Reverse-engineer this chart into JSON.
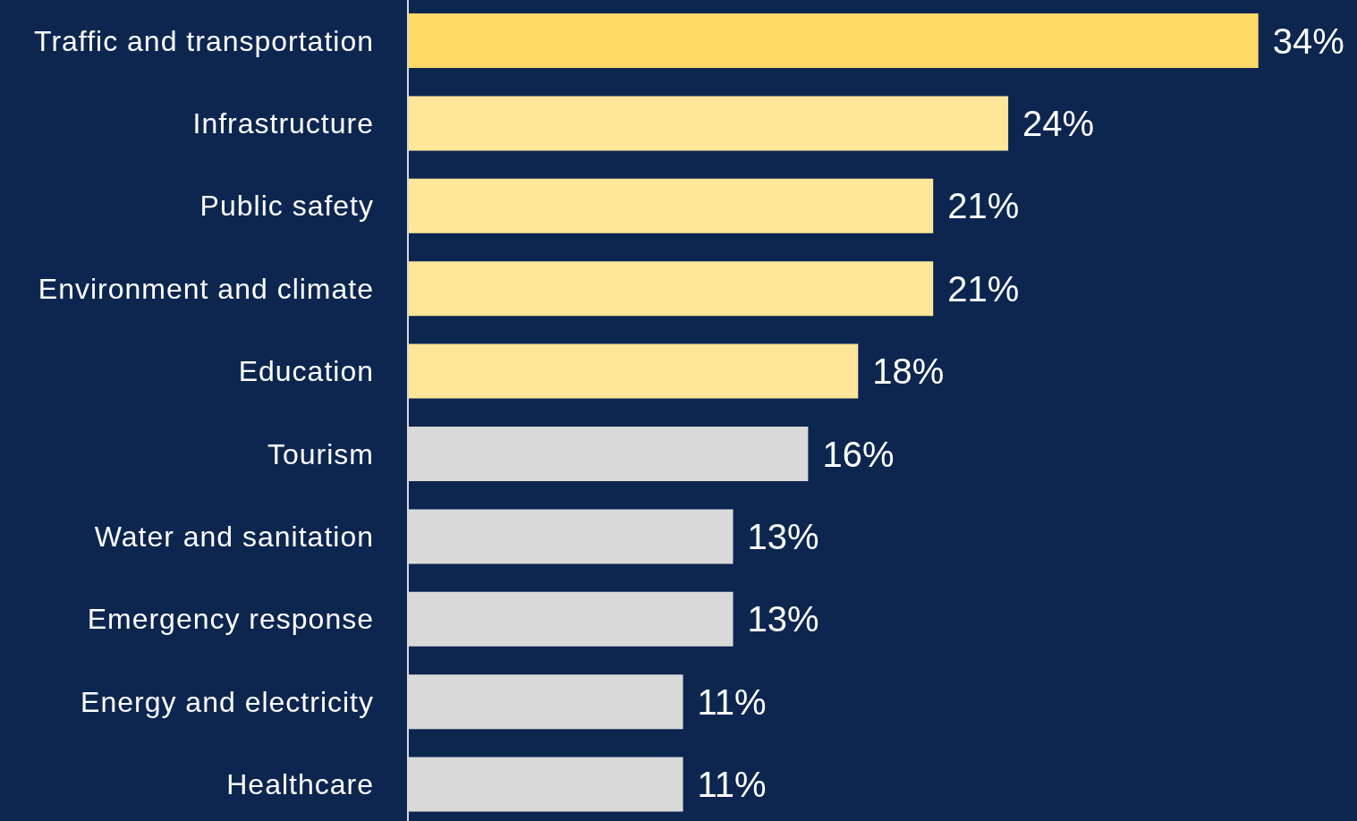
{
  "chart_data": {
    "type": "bar",
    "orientation": "horizontal",
    "tick_labels": "y",
    "categories": [
      "Traffic and transportation",
      "Infrastructure",
      "Public safety",
      "Environment and climate",
      "Education",
      "Tourism",
      "Water and sanitation",
      "Emergency response",
      "Energy and electricity",
      "Healthcare"
    ],
    "values": [
      34,
      24,
      21,
      21,
      18,
      16,
      13,
      13,
      11,
      11
    ],
    "value_labels": [
      "34%",
      "24%",
      "21%",
      "21%",
      "18%",
      "16%",
      "13%",
      "13%",
      "11%",
      "11%"
    ],
    "colors": [
      "#ffd966",
      "#ffe699",
      "#ffe699",
      "#ffe699",
      "#ffe699",
      "#d9d9d9",
      "#d9d9d9",
      "#d9d9d9",
      "#d9d9d9",
      "#d9d9d9"
    ],
    "grid": false,
    "legend": false
  }
}
